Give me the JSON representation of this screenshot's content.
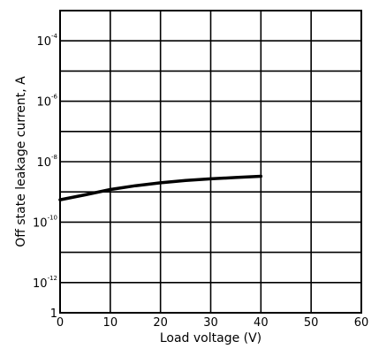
{
  "chart_data": {
    "type": "line",
    "xlabel": "Load voltage (V)",
    "ylabel": "Off state leakage current, A",
    "xlim": [
      0,
      60
    ],
    "ylim": [
      1e-13,
      0.001
    ],
    "yscale": "log",
    "grid": true,
    "x_ticks": [
      "0",
      "10",
      "20",
      "30",
      "40",
      "50",
      "60"
    ],
    "y_tick_labels": [
      {
        "value": 0.0001,
        "base": "10",
        "exp": "-4"
      },
      {
        "value": 1e-06,
        "base": "10",
        "exp": "-6"
      },
      {
        "value": 1e-08,
        "base": "10",
        "exp": "-8"
      },
      {
        "value": 1e-10,
        "base": "10",
        "exp": "-10"
      },
      {
        "value": 1e-12,
        "base": "10",
        "exp": "-12"
      },
      {
        "value": 1e-13,
        "base": "1",
        "exp": ""
      }
    ],
    "series": [
      {
        "x": [
          0,
          5,
          10,
          15,
          20,
          25,
          30,
          35,
          40
        ],
        "y": [
          5.5e-10,
          8e-10,
          1.2e-09,
          1.6e-09,
          2e-09,
          2.4e-09,
          2.7e-09,
          3e-09,
          3.3e-09
        ],
        "color": "#000000"
      }
    ]
  }
}
